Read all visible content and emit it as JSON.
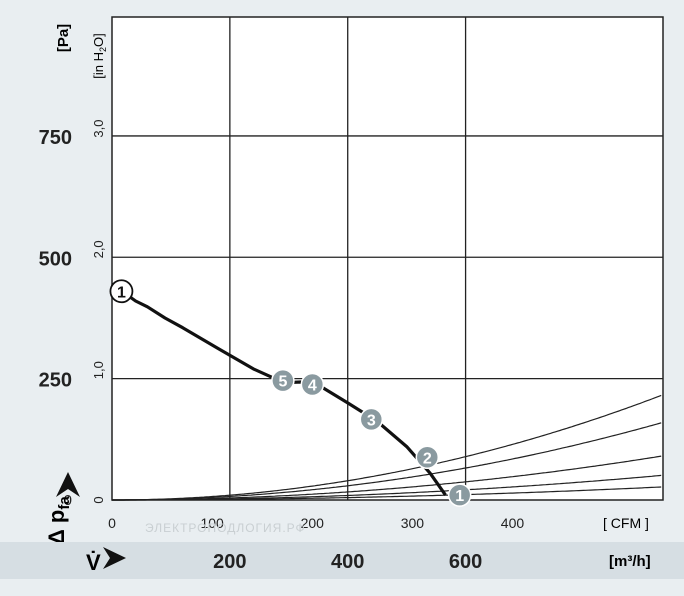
{
  "chart_data": {
    "type": "line",
    "y_axis_left": {
      "unit": "[Pa]",
      "ticks": [
        "750",
        "500",
        "250",
        "0"
      ],
      "tick_values": [
        750,
        500,
        250,
        0
      ],
      "label": "Δ p",
      "label_sub": "fa"
    },
    "y_axis_inner": {
      "unit": "[in H",
      "unit_sub": "2",
      "unit_end": "O]",
      "ticks": [
        "3,0",
        "2,0",
        "1,0",
        "0"
      ],
      "tick_values": [
        3.0,
        2.0,
        1.0,
        0
      ]
    },
    "x_axis_cfm": {
      "unit": "[ CFM ]",
      "ticks": [
        "0",
        "100",
        "200",
        "300",
        "400"
      ],
      "tick_values": [
        0,
        100,
        200,
        300,
        400
      ]
    },
    "x_axis_m3h": {
      "label": "V̇",
      "unit": "[m³/h]",
      "ticks": [
        "200",
        "400",
        "600"
      ],
      "tick_values": [
        200,
        400,
        600
      ]
    },
    "xlim_m3h": [
      0,
      935
    ],
    "ylim_pa": [
      0,
      995
    ],
    "grid": true,
    "fan_curve": {
      "x_m3h": [
        0,
        40,
        60,
        90,
        120,
        180,
        240,
        280,
        300,
        320,
        350,
        400,
        450,
        500,
        540,
        566
      ],
      "y_pa": [
        445,
        410,
        398,
        375,
        355,
        312,
        270,
        248,
        242,
        243,
        237,
        200,
        162,
        110,
        55,
        10
      ]
    },
    "system_curves": [
      {
        "k": 0.000248
      },
      {
        "k": 0.000183
      },
      {
        "k": 0.000104
      },
      {
        "k": 5.83e-05
      },
      {
        "k": 3.09e-05
      }
    ],
    "markers": [
      {
        "label": "1",
        "x_m3h": 16,
        "y_pa": 430,
        "style": "open"
      },
      {
        "label": "5",
        "x_m3h": 290,
        "y_pa": 246,
        "style": "filled"
      },
      {
        "label": "4",
        "x_m3h": 340,
        "y_pa": 238,
        "style": "filled"
      },
      {
        "label": "3",
        "x_m3h": 440,
        "y_pa": 166,
        "style": "filled"
      },
      {
        "label": "2",
        "x_m3h": 535,
        "y_pa": 88,
        "style": "filled"
      },
      {
        "label": "1",
        "x_m3h": 590,
        "y_pa": 10,
        "style": "filled"
      }
    ],
    "colors": {
      "background": "#e9eef1",
      "plot": "#ffffff",
      "grid": "#222222",
      "fan_curve": "#111111",
      "marker_fill": "#8a9aa0"
    }
  }
}
